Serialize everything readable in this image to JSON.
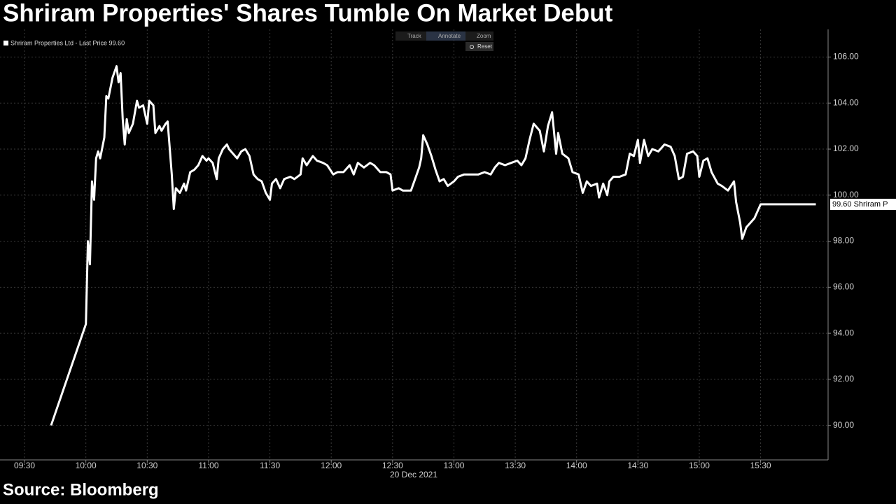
{
  "chart_data": {
    "type": "line",
    "title": "Shriram Properties' Shares Tumble On Market Debut",
    "source": "Source: Bloomberg",
    "date_label": "20 Dec 2021",
    "toolbar": [
      "Track",
      "Annotate",
      "Zoom",
      "Reset"
    ],
    "last_price_label": {
      "value": 99.6,
      "label": "99.60 Shriram P"
    },
    "xlim": [
      "09:18",
      "16:03"
    ],
    "xticks": [
      "09:30",
      "10:00",
      "10:30",
      "11:00",
      "11:30",
      "12:00",
      "12:30",
      "13:00",
      "13:30",
      "14:00",
      "14:30",
      "15:00",
      "15:30"
    ],
    "ylim": [
      88.5,
      107.2
    ],
    "yticks": [
      {
        "value": 90,
        "label": "90.00"
      },
      {
        "value": 92,
        "label": "92.00"
      },
      {
        "value": 94,
        "label": "94.00"
      },
      {
        "value": 96,
        "label": "96.00"
      },
      {
        "value": 98,
        "label": "98.00"
      },
      {
        "value": 100,
        "label": "100.00"
      },
      {
        "value": 102,
        "label": "102.00"
      },
      {
        "value": 104,
        "label": "104.00"
      },
      {
        "value": 106,
        "label": "106.00"
      }
    ],
    "grid": true,
    "series": [
      {
        "name": "Shriram Properties Ltd - Last Price 99.60",
        "color": "#ffffff",
        "x": [
          "09:43",
          "10:00",
          "10:01",
          "10:02",
          "10:03",
          "10:04",
          "10:05",
          "10:06",
          "10:07",
          "10:09",
          "10:10",
          "10:11",
          "10:13",
          "10:15",
          "10:16",
          "10:17",
          "10:18",
          "10:19",
          "10:20",
          "10:21",
          "10:23",
          "10:25",
          "10:26",
          "10:28",
          "10:30",
          "10:31",
          "10:33",
          "10:34",
          "10:36",
          "10:37",
          "10:39",
          "10:40",
          "10:42",
          "10:43",
          "10:44",
          "10:46",
          "10:48",
          "10:49",
          "10:51",
          "10:53",
          "10:55",
          "10:57",
          "10:59",
          "11:00",
          "11:02",
          "11:04",
          "11:05",
          "11:07",
          "11:09",
          "11:10",
          "11:12",
          "11:14",
          "11:16",
          "11:18",
          "11:20",
          "11:22",
          "11:24",
          "11:26",
          "11:28",
          "11:30",
          "11:31",
          "11:33",
          "11:35",
          "11:37",
          "11:40",
          "11:42",
          "11:45",
          "11:46",
          "11:48",
          "11:51",
          "11:53",
          "11:56",
          "11:58",
          "12:01",
          "12:03",
          "12:06",
          "12:09",
          "12:11",
          "12:13",
          "12:16",
          "12:19",
          "12:21",
          "12:24",
          "12:27",
          "12:29",
          "12:30",
          "12:33",
          "12:35",
          "12:39",
          "12:41",
          "12:43",
          "12:44",
          "12:45",
          "12:47",
          "12:49",
          "12:51",
          "12:53",
          "12:55",
          "12:57",
          "13:00",
          "13:02",
          "13:05",
          "13:08",
          "13:12",
          "13:15",
          "13:18",
          "13:20",
          "13:22",
          "13:25",
          "13:28",
          "13:31",
          "13:33",
          "13:35",
          "13:37",
          "13:39",
          "13:42",
          "13:44",
          "13:46",
          "13:48",
          "13:50",
          "13:51",
          "13:53",
          "13:56",
          "13:58",
          "14:01",
          "14:03",
          "14:05",
          "14:07",
          "14:10",
          "14:11",
          "14:13",
          "14:15",
          "14:16",
          "14:18",
          "14:21",
          "14:24",
          "14:26",
          "14:28",
          "14:30",
          "14:31",
          "14:33",
          "14:35",
          "14:37",
          "14:40",
          "14:43",
          "14:46",
          "14:48",
          "14:50",
          "14:52",
          "14:54",
          "14:57",
          "14:59",
          "15:00",
          "15:02",
          "15:04",
          "15:06",
          "15:09",
          "15:11",
          "15:14",
          "15:17",
          "15:18",
          "15:20",
          "15:21",
          "15:23",
          "15:25",
          "15:27",
          "15:30",
          "15:57"
        ],
        "values": [
          90.0,
          94.4,
          98.0,
          97.0,
          100.6,
          99.8,
          101.6,
          101.9,
          101.6,
          102.5,
          104.3,
          104.2,
          105.1,
          105.6,
          104.9,
          105.3,
          103.3,
          102.2,
          103.3,
          102.7,
          103.1,
          104.1,
          103.8,
          103.9,
          103.1,
          104.1,
          103.9,
          102.7,
          103.0,
          102.8,
          103.1,
          103.2,
          100.9,
          99.4,
          100.3,
          100.1,
          100.5,
          100.2,
          101.0,
          101.1,
          101.3,
          101.7,
          101.5,
          101.6,
          101.4,
          100.7,
          101.6,
          102.0,
          102.2,
          102.0,
          101.8,
          101.6,
          101.9,
          102.0,
          101.7,
          100.9,
          100.7,
          100.6,
          100.1,
          99.8,
          100.5,
          100.7,
          100.3,
          100.7,
          100.8,
          100.7,
          100.9,
          101.6,
          101.3,
          101.7,
          101.5,
          101.4,
          101.3,
          100.9,
          101.0,
          101.0,
          101.3,
          100.9,
          101.4,
          101.2,
          101.4,
          101.3,
          101.0,
          101.0,
          100.9,
          100.2,
          100.3,
          100.2,
          100.2,
          100.7,
          101.2,
          101.6,
          102.6,
          102.2,
          101.7,
          101.1,
          100.6,
          100.7,
          100.4,
          100.6,
          100.8,
          100.9,
          100.9,
          100.9,
          101.0,
          100.9,
          101.2,
          101.4,
          101.3,
          101.4,
          101.5,
          101.3,
          101.6,
          102.4,
          103.1,
          102.8,
          101.9,
          103.0,
          103.6,
          101.8,
          102.7,
          101.8,
          101.6,
          101.0,
          100.9,
          100.1,
          100.6,
          100.4,
          100.5,
          99.9,
          100.5,
          100.0,
          100.6,
          100.8,
          100.8,
          100.9,
          101.8,
          101.7,
          102.4,
          101.4,
          102.4,
          101.7,
          102.0,
          101.9,
          102.2,
          102.1,
          101.7,
          100.7,
          100.8,
          101.8,
          101.9,
          101.7,
          100.8,
          101.5,
          101.6,
          101.0,
          100.5,
          100.4,
          100.2,
          100.6,
          99.7,
          98.8,
          98.1,
          98.6,
          98.8,
          99.0,
          99.6,
          99.6
        ]
      }
    ]
  }
}
